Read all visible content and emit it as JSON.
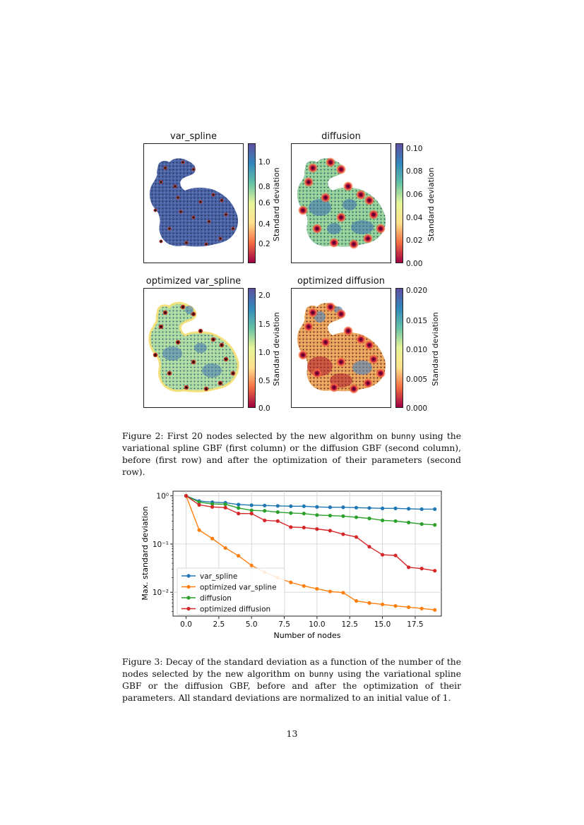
{
  "figure2": {
    "panels": [
      {
        "title": "var_spline",
        "colorbar_label": "Standard deviation",
        "ticks": [
          "1.0",
          "0.8",
          "0.6",
          "0.4",
          "0.2"
        ]
      },
      {
        "title": "diffusion",
        "colorbar_label": "Standard deviation",
        "ticks": [
          "0.10",
          "0.08",
          "0.06",
          "0.04",
          "0.02",
          "0.00"
        ]
      },
      {
        "title": "optimized var_spline",
        "colorbar_label": "Standard deviation",
        "ticks": [
          "2.0",
          "1.5",
          "1.0",
          "0.5",
          "0.0"
        ]
      },
      {
        "title": "optimized diffusion",
        "colorbar_label": "Standard deviation",
        "ticks": [
          "0.020",
          "0.015",
          "0.010",
          "0.005",
          "0.000"
        ]
      }
    ],
    "caption_parts": [
      "Figure 2: First 20 nodes selected by the new algorithm on ",
      "bunny",
      " using the variational spline GBF (first column) or the diffusion GBF (second column), before (first row) and after the optimization of their parameters (second row)."
    ]
  },
  "chart_data": {
    "type": "line",
    "xlabel": "Number of nodes",
    "ylabel": "Max. standard deviation",
    "yscale": "log",
    "xlim": [
      -1,
      19.5
    ],
    "ylim": [
      0.0032,
      1.25
    ],
    "xticks": [
      "0.0",
      "2.5",
      "5.0",
      "7.5",
      "10.0",
      "12.5",
      "15.0",
      "17.5"
    ],
    "yticks": [
      "10⁰",
      "10⁻¹",
      "10⁻²"
    ],
    "grid": true,
    "legend_position": "lower-left",
    "x": [
      0,
      1,
      2,
      3,
      4,
      5,
      6,
      7,
      8,
      9,
      10,
      11,
      12,
      13,
      14,
      15,
      16,
      17,
      18,
      19
    ],
    "series": [
      {
        "name": "var_spline",
        "color": "#1f77b4",
        "values": [
          1.0,
          0.78,
          0.74,
          0.72,
          0.66,
          0.64,
          0.63,
          0.62,
          0.61,
          0.61,
          0.59,
          0.58,
          0.58,
          0.57,
          0.56,
          0.55,
          0.55,
          0.54,
          0.53,
          0.53
        ]
      },
      {
        "name": "optimized var_spline",
        "color": "#ff7f0e",
        "values": [
          1.0,
          0.195,
          0.13,
          0.083,
          0.057,
          0.036,
          0.026,
          0.02,
          0.016,
          0.0135,
          0.0118,
          0.0104,
          0.0098,
          0.0066,
          0.006,
          0.0056,
          0.0052,
          0.0049,
          0.0046,
          0.0043
        ]
      },
      {
        "name": "diffusion",
        "color": "#2ca02c",
        "values": [
          1.0,
          0.74,
          0.68,
          0.67,
          0.56,
          0.5,
          0.49,
          0.46,
          0.44,
          0.43,
          0.4,
          0.39,
          0.38,
          0.36,
          0.34,
          0.31,
          0.3,
          0.28,
          0.26,
          0.25
        ]
      },
      {
        "name": "optimized diffusion",
        "color": "#d62728",
        "values": [
          1.0,
          0.65,
          0.59,
          0.57,
          0.43,
          0.43,
          0.31,
          0.3,
          0.225,
          0.22,
          0.205,
          0.19,
          0.16,
          0.14,
          0.088,
          0.06,
          0.058,
          0.033,
          0.031,
          0.028
        ]
      }
    ]
  },
  "figure3": {
    "caption_parts": [
      "Figure 3: Decay of the standard deviation as a function of the number of the nodes selected by the new algorithm on ",
      "bunny",
      " using the variational spline GBF or the diffusion GBF, before and after the optimization of their parameters. All standard deviations are normalized to an initial value of 1."
    ]
  },
  "page_number": "13"
}
